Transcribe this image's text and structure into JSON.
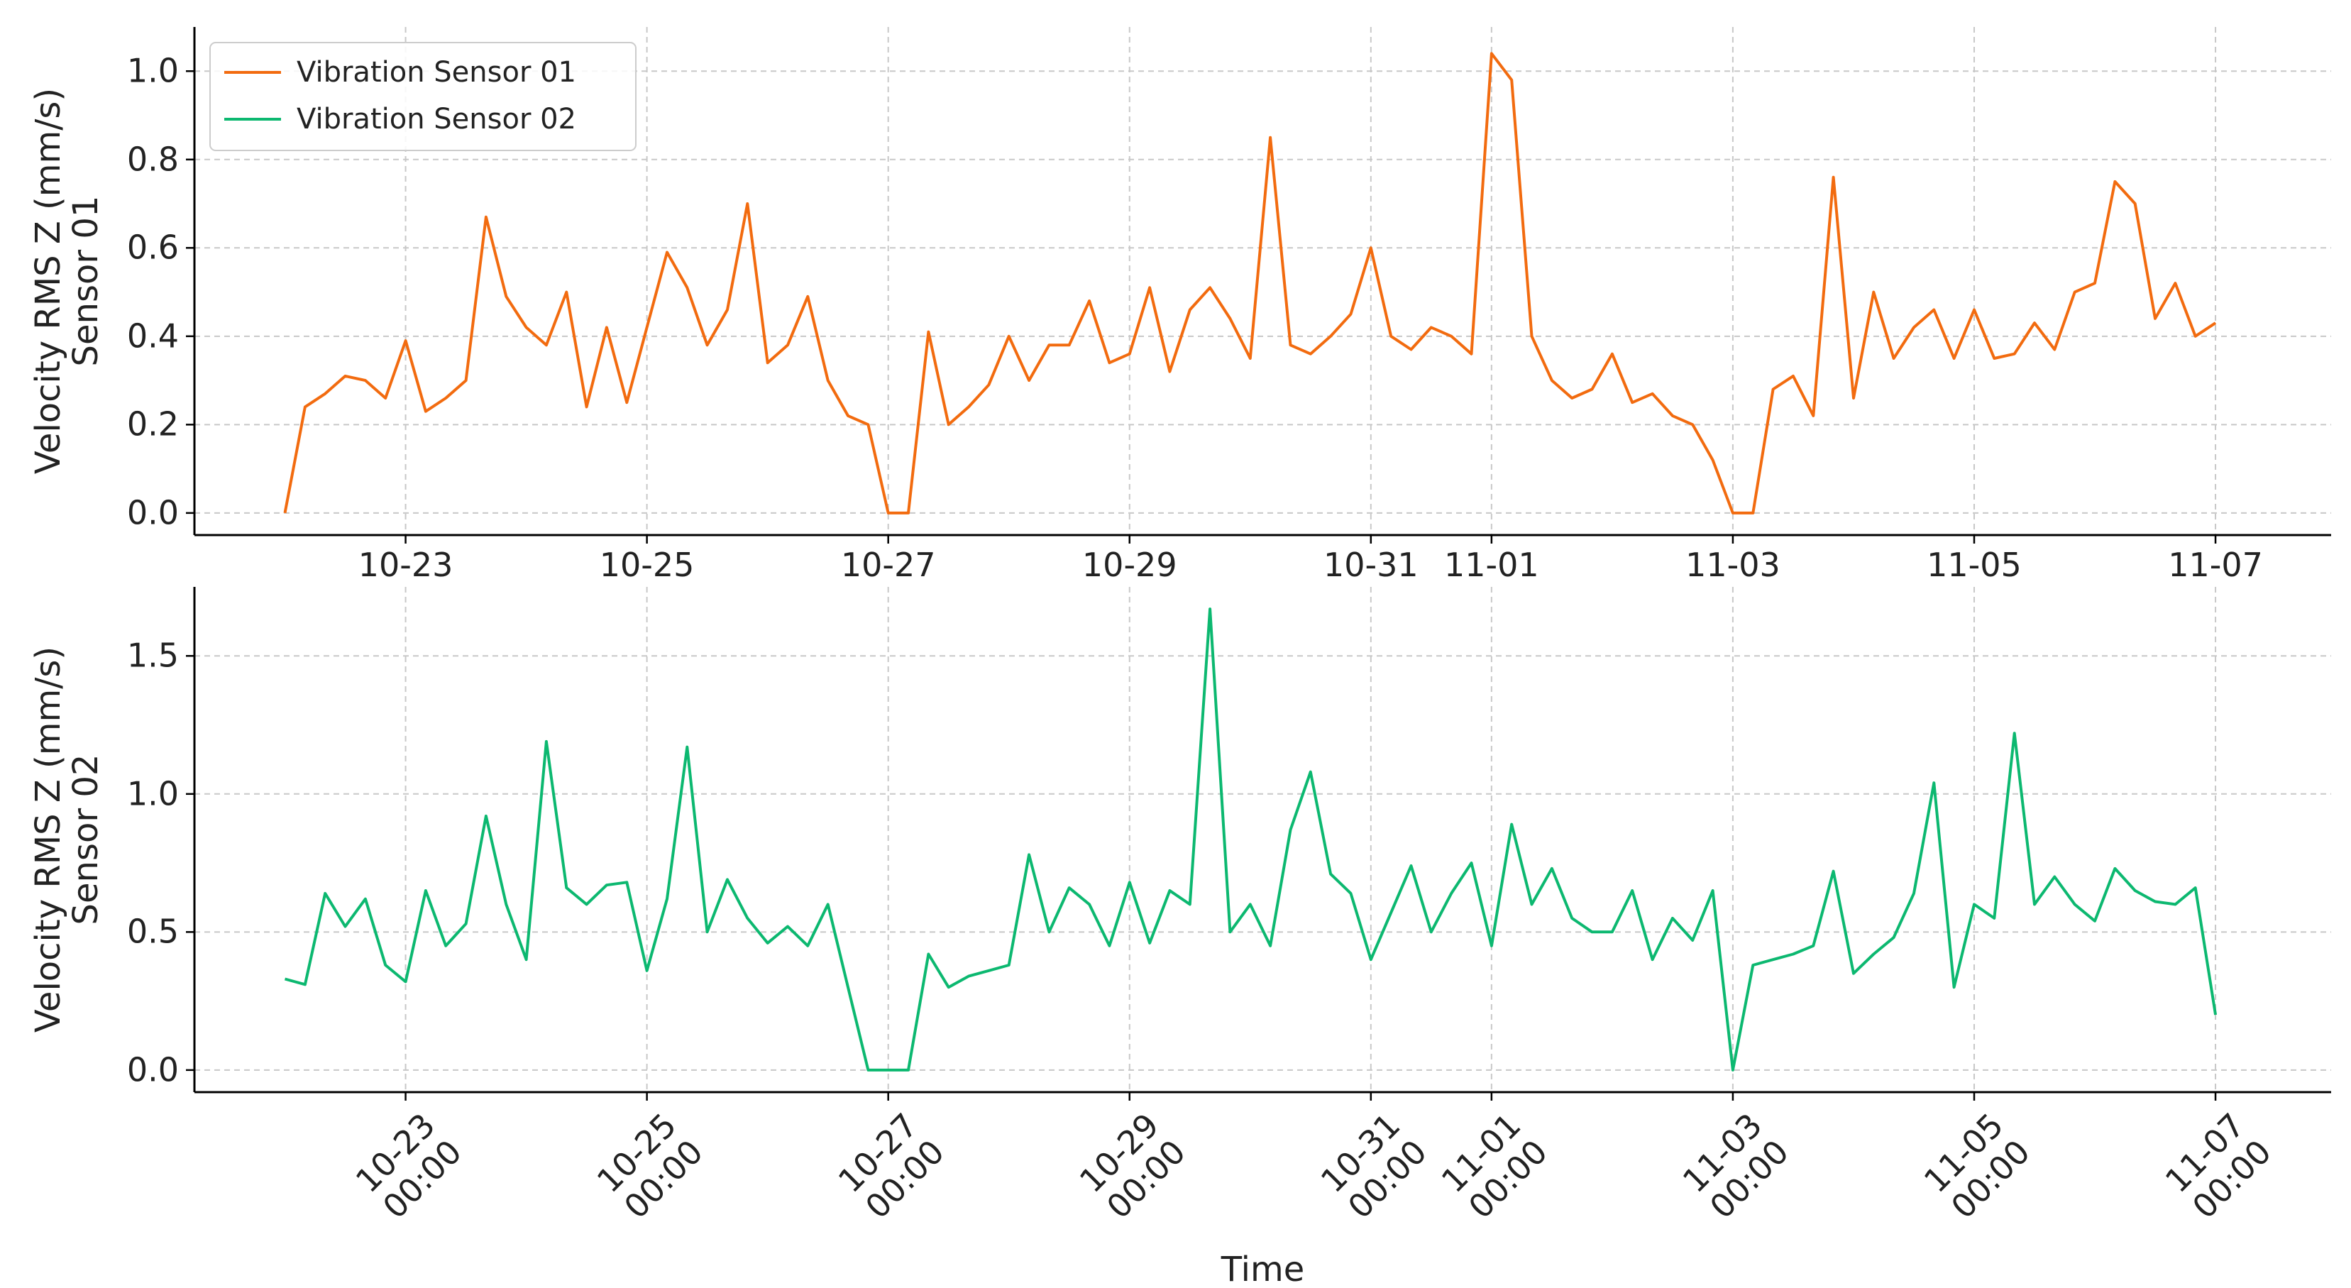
{
  "chart_data": [
    {
      "type": "line",
      "ylabel": "Velocity RMS Z (mm/s)\nSensor 01",
      "legend": "upper left",
      "grid": true,
      "xlim": [
        "10-21 06:00",
        "11-07 23:00"
      ],
      "xticks": [
        {
          "value": "10-23 00:00",
          "label": "10-23"
        },
        {
          "value": "10-25 00:00",
          "label": "10-25"
        },
        {
          "value": "10-27 00:00",
          "label": "10-27"
        },
        {
          "value": "10-29 00:00",
          "label": "10-29"
        },
        {
          "value": "10-31 00:00",
          "label": "10-31"
        },
        {
          "value": "11-01 00:00",
          "label": "11-01"
        },
        {
          "value": "11-03 00:00",
          "label": "11-03"
        },
        {
          "value": "11-05 00:00",
          "label": "11-05"
        },
        {
          "value": "11-07 00:00",
          "label": "11-07"
        }
      ],
      "ylim": [
        -0.05,
        1.1
      ],
      "yticks": [
        {
          "value": 0,
          "label": "0.0"
        },
        0.2,
        0.4,
        0.6,
        0.8,
        {
          "value": 1,
          "label": "1.0"
        }
      ],
      "x": [
        "10-22 00:00",
        "10-22 04:00",
        "10-22 08:00",
        "10-22 12:00",
        "10-22 16:00",
        "10-22 20:00",
        "10-23 00:00",
        "10-23 04:00",
        "10-23 08:00",
        "10-23 12:00",
        "10-23 16:00",
        "10-23 20:00",
        "10-24 00:00",
        "10-24 04:00",
        "10-24 08:00",
        "10-24 12:00",
        "10-24 16:00",
        "10-24 20:00",
        "10-25 00:00",
        "10-25 04:00",
        "10-25 08:00",
        "10-25 12:00",
        "10-25 16:00",
        "10-25 20:00",
        "10-26 00:00",
        "10-26 04:00",
        "10-26 08:00",
        "10-26 12:00",
        "10-26 16:00",
        "10-26 20:00",
        "10-27 00:00",
        "10-27 04:00",
        "10-27 08:00",
        "10-27 12:00",
        "10-27 16:00",
        "10-27 20:00",
        "10-28 00:00",
        "10-28 04:00",
        "10-28 08:00",
        "10-28 12:00",
        "10-28 16:00",
        "10-28 20:00",
        "10-29 00:00",
        "10-29 04:00",
        "10-29 08:00",
        "10-29 12:00",
        "10-29 16:00",
        "10-29 20:00",
        "10-30 00:00",
        "10-30 04:00",
        "10-30 08:00",
        "10-30 12:00",
        "10-30 16:00",
        "10-30 20:00",
        "10-31 00:00",
        "10-31 04:00",
        "10-31 08:00",
        "10-31 12:00",
        "10-31 16:00",
        "10-31 20:00",
        "11-01 00:00",
        "11-01 04:00",
        "11-01 08:00",
        "11-01 12:00",
        "11-01 16:00",
        "11-01 20:00",
        "11-02 00:00",
        "11-02 04:00",
        "11-02 08:00",
        "11-02 12:00",
        "11-02 16:00",
        "11-02 20:00",
        "11-03 00:00",
        "11-03 04:00",
        "11-03 08:00",
        "11-03 12:00",
        "11-03 16:00",
        "11-03 20:00",
        "11-04 00:00",
        "11-04 04:00",
        "11-04 08:00",
        "11-04 12:00",
        "11-04 16:00",
        "11-04 20:00",
        "11-05 00:00",
        "11-05 04:00",
        "11-05 08:00",
        "11-05 12:00",
        "11-05 16:00",
        "11-05 20:00",
        "11-06 00:00",
        "11-06 04:00",
        "11-06 08:00",
        "11-06 12:00",
        "11-06 16:00",
        "11-06 20:00",
        "11-07 00:00"
      ],
      "series": [
        {
          "name": "Vibration Sensor 01",
          "color": "#f26b0f",
          "values": [
            0,
            0.24,
            0.27,
            0.31,
            0.3,
            0.26,
            0.39,
            0.23,
            0.26,
            0.3,
            0.67,
            0.49,
            0.42,
            0.38,
            0.5,
            0.24,
            0.42,
            0.25,
            0.42,
            0.59,
            0.51,
            0.38,
            0.46,
            0.7,
            0.34,
            0.38,
            0.49,
            0.3,
            0.22,
            0.2,
            0,
            0,
            0.41,
            0.2,
            0.24,
            0.29,
            0.4,
            0.3,
            0.38,
            0.38,
            0.48,
            0.34,
            0.36,
            0.51,
            0.32,
            0.46,
            0.51,
            0.44,
            0.35,
            0.85,
            0.38,
            0.36,
            0.4,
            0.45,
            0.6,
            0.4,
            0.37,
            0.42,
            0.4,
            0.36,
            1.04,
            0.98,
            0.4,
            0.3,
            0.26,
            0.28,
            0.36,
            0.25,
            0.27,
            0.22,
            0.2,
            0.12,
            0,
            0,
            0.28,
            0.31,
            0.22,
            0.76,
            0.26,
            0.5,
            0.35,
            0.42,
            0.46,
            0.35,
            0.46,
            0.35,
            0.36,
            0.43,
            0.37,
            0.5,
            0.52,
            0.75,
            0.7,
            0.44,
            0.52,
            0.4,
            0.43
          ]
        }
      ]
    },
    {
      "type": "line",
      "ylabel": "Velocity RMS Z (mm/s)\nSensor 02",
      "xlabel": "Time",
      "grid": true,
      "xlim": [
        "10-21 06:00",
        "11-07 23:00"
      ],
      "xticks": [
        {
          "value": "10-23 00:00",
          "label": "10-23\n00:00"
        },
        {
          "value": "10-25 00:00",
          "label": "10-25\n00:00"
        },
        {
          "value": "10-27 00:00",
          "label": "10-27\n00:00"
        },
        {
          "value": "10-29 00:00",
          "label": "10-29\n00:00"
        },
        {
          "value": "10-31 00:00",
          "label": "10-31\n00:00"
        },
        {
          "value": "11-01 00:00",
          "label": "11-01\n00:00"
        },
        {
          "value": "11-03 00:00",
          "label": "11-03\n00:00"
        },
        {
          "value": "11-05 00:00",
          "label": "11-05\n00:00"
        },
        {
          "value": "11-07 00:00",
          "label": "11-07\n00:00"
        }
      ],
      "ylim": [
        -0.08,
        1.75
      ],
      "yticks": [
        {
          "value": 0,
          "label": "0.0"
        },
        0.5,
        {
          "value": 1,
          "label": "1.0"
        },
        1.5
      ],
      "x": [
        "10-22 00:00",
        "10-22 04:00",
        "10-22 08:00",
        "10-22 12:00",
        "10-22 16:00",
        "10-22 20:00",
        "10-23 00:00",
        "10-23 04:00",
        "10-23 08:00",
        "10-23 12:00",
        "10-23 16:00",
        "10-23 20:00",
        "10-24 00:00",
        "10-24 04:00",
        "10-24 08:00",
        "10-24 12:00",
        "10-24 16:00",
        "10-24 20:00",
        "10-25 00:00",
        "10-25 04:00",
        "10-25 08:00",
        "10-25 12:00",
        "10-25 16:00",
        "10-25 20:00",
        "10-26 00:00",
        "10-26 04:00",
        "10-26 08:00",
        "10-26 12:00",
        "10-26 16:00",
        "10-26 20:00",
        "10-27 00:00",
        "10-27 04:00",
        "10-27 08:00",
        "10-27 12:00",
        "10-27 16:00",
        "10-27 20:00",
        "10-28 00:00",
        "10-28 04:00",
        "10-28 08:00",
        "10-28 12:00",
        "10-28 16:00",
        "10-28 20:00",
        "10-29 00:00",
        "10-29 04:00",
        "10-29 08:00",
        "10-29 12:00",
        "10-29 16:00",
        "10-29 20:00",
        "10-30 00:00",
        "10-30 04:00",
        "10-30 08:00",
        "10-30 12:00",
        "10-30 16:00",
        "10-30 20:00",
        "10-31 00:00",
        "10-31 04:00",
        "10-31 08:00",
        "10-31 12:00",
        "10-31 16:00",
        "10-31 20:00",
        "11-01 00:00",
        "11-01 04:00",
        "11-01 08:00",
        "11-01 12:00",
        "11-01 16:00",
        "11-01 20:00",
        "11-02 00:00",
        "11-02 04:00",
        "11-02 08:00",
        "11-02 12:00",
        "11-02 16:00",
        "11-02 20:00",
        "11-03 00:00",
        "11-03 04:00",
        "11-03 08:00",
        "11-03 12:00",
        "11-03 16:00",
        "11-03 20:00",
        "11-04 00:00",
        "11-04 04:00",
        "11-04 08:00",
        "11-04 12:00",
        "11-04 16:00",
        "11-04 20:00",
        "11-05 00:00",
        "11-05 04:00",
        "11-05 08:00",
        "11-05 12:00",
        "11-05 16:00",
        "11-05 20:00",
        "11-06 00:00",
        "11-06 04:00",
        "11-06 08:00",
        "11-06 12:00",
        "11-06 16:00",
        "11-06 20:00",
        "11-07 00:00"
      ],
      "series": [
        {
          "name": "Vibration Sensor 02",
          "color": "#0cb870",
          "values": [
            0.33,
            0.31,
            0.64,
            0.52,
            0.62,
            0.38,
            0.32,
            0.65,
            0.45,
            0.53,
            0.92,
            0.6,
            0.4,
            1.19,
            0.66,
            0.6,
            0.67,
            0.68,
            0.36,
            0.62,
            1.17,
            0.5,
            0.69,
            0.55,
            0.46,
            0.52,
            0.45,
            0.6,
            0.3,
            0,
            0,
            0,
            0.42,
            0.3,
            0.34,
            0.36,
            0.38,
            0.78,
            0.5,
            0.66,
            0.6,
            0.45,
            0.68,
            0.46,
            0.65,
            0.6,
            1.67,
            0.5,
            0.6,
            0.45,
            0.87,
            1.08,
            0.71,
            0.64,
            0.4,
            0.57,
            0.74,
            0.5,
            0.64,
            0.75,
            0.45,
            0.89,
            0.6,
            0.73,
            0.55,
            0.5,
            0.5,
            0.65,
            0.4,
            0.55,
            0.47,
            0.65,
            0,
            0.38,
            0.4,
            0.42,
            0.45,
            0.72,
            0.35,
            0.42,
            0.48,
            0.64,
            1.04,
            0.3,
            0.6,
            0.55,
            1.22,
            0.6,
            0.7,
            0.6,
            0.54,
            0.73,
            0.65,
            0.61,
            0.6,
            0.66,
            0.2
          ]
        }
      ]
    }
  ]
}
